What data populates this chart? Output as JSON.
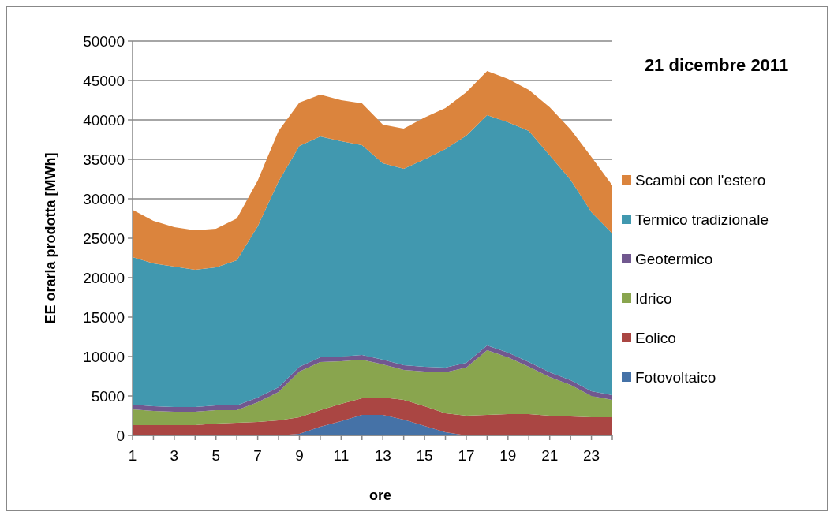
{
  "chart_data": {
    "type": "area",
    "stacked": true,
    "title": "21 dicembre 2011",
    "xlabel": "ore",
    "ylabel": "EE oraria prodotta [MWh]",
    "x": [
      1,
      2,
      3,
      4,
      5,
      6,
      7,
      8,
      9,
      10,
      11,
      12,
      13,
      14,
      15,
      16,
      17,
      18,
      19,
      20,
      21,
      22,
      23,
      24
    ],
    "xlim": [
      1,
      24
    ],
    "xticks": [
      1,
      {
        "value": 2,
        "label": null
      },
      3,
      {
        "value": 4,
        "label": null
      },
      5,
      {
        "value": 6,
        "label": null
      },
      7,
      {
        "value": 8,
        "label": null
      },
      9,
      {
        "value": 10,
        "label": null
      },
      11,
      {
        "value": 12,
        "label": null
      },
      13,
      {
        "value": 14,
        "label": null
      },
      15,
      {
        "value": 16,
        "label": null
      },
      17,
      {
        "value": 18,
        "label": null
      },
      19,
      {
        "value": 20,
        "label": null
      },
      21,
      {
        "value": 22,
        "label": null
      },
      23,
      {
        "value": 24,
        "label": null
      }
    ],
    "ylim": [
      0,
      50000
    ],
    "yticks": [
      0,
      5000,
      10000,
      15000,
      20000,
      25000,
      30000,
      35000,
      40000,
      45000,
      50000
    ],
    "grid": "y",
    "legend": "right",
    "series": [
      {
        "name": "Fotovoltaico",
        "color": "#4572a7",
        "values": [
          0,
          0,
          0,
          0,
          0,
          0,
          0,
          0,
          200,
          1100,
          1800,
          2600,
          2600,
          2000,
          1200,
          400,
          0,
          0,
          0,
          0,
          0,
          0,
          0,
          0
        ]
      },
      {
        "name": "Eolico",
        "color": "#aa4643",
        "values": [
          1300,
          1300,
          1300,
          1300,
          1500,
          1600,
          1700,
          1900,
          2100,
          2100,
          2200,
          2100,
          2200,
          2500,
          2500,
          2400,
          2500,
          2600,
          2700,
          2700,
          2500,
          2400,
          2300,
          2300
        ]
      },
      {
        "name": "Idrico",
        "color": "#89a54e",
        "values": [
          2000,
          1800,
          1700,
          1700,
          1700,
          1600,
          2500,
          3600,
          5800,
          6100,
          5400,
          4900,
          4200,
          3800,
          4400,
          5200,
          6100,
          8200,
          7200,
          6000,
          4900,
          4000,
          2700,
          2200
        ]
      },
      {
        "name": "Geotermico",
        "color": "#71588f",
        "values": [
          600,
          600,
          600,
          600,
          600,
          600,
          600,
          600,
          600,
          600,
          600,
          600,
          600,
          600,
          600,
          600,
          600,
          600,
          600,
          600,
          600,
          600,
          600,
          600
        ]
      },
      {
        "name": "Termico tradizionale",
        "color": "#4198af",
        "values": [
          18700,
          18100,
          17800,
          17400,
          17500,
          18400,
          21700,
          26100,
          28000,
          28000,
          27300,
          26600,
          24900,
          24900,
          26300,
          27700,
          28800,
          29200,
          29200,
          29300,
          27500,
          25400,
          22700,
          20500
        ]
      },
      {
        "name": "Scambi con l'estero",
        "color": "#db843d",
        "values": [
          6000,
          5400,
          5000,
          5000,
          4900,
          5300,
          5800,
          6400,
          5500,
          5300,
          5200,
          5300,
          4900,
          5100,
          5300,
          5200,
          5500,
          5600,
          5500,
          5200,
          6100,
          6400,
          7000,
          6100
        ]
      }
    ]
  }
}
